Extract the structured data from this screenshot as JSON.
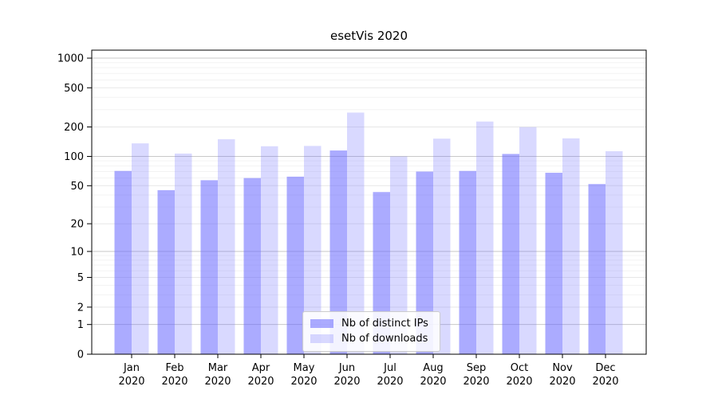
{
  "title": "esetVis 2020",
  "chart_data": {
    "type": "bar",
    "title": "esetVis 2020",
    "categories": [
      "Jan",
      "Feb",
      "Mar",
      "Apr",
      "May",
      "Jun",
      "Jul",
      "Aug",
      "Sep",
      "Oct",
      "Nov",
      "Dec"
    ],
    "category_year": "2020",
    "series": [
      {
        "name": "Nb of distinct IPs",
        "color": "rgba(102,102,255,0.55)",
        "values": [
          71,
          45,
          57,
          60,
          62,
          115,
          43,
          70,
          71,
          106,
          68,
          52
        ]
      },
      {
        "name": "Nb of downloads",
        "color": "rgba(102,102,255,0.25)",
        "values": [
          136,
          107,
          150,
          127,
          128,
          280,
          100,
          152,
          227,
          199,
          153,
          113
        ]
      }
    ],
    "y_scale": "symlog",
    "y_ticks": [
      0,
      1,
      2,
      5,
      10,
      20,
      50,
      100,
      200,
      500,
      1000
    ],
    "y_max": 1205,
    "xlabel": "",
    "ylabel": "",
    "grid": true,
    "legend_position": "lower center"
  },
  "colors": {
    "spine": "#000000",
    "tick_text": "#000000",
    "grid_major": "#c8c8c8",
    "grid_minor": "#e7e7e7",
    "grid_faint": "#f3f3f3",
    "legend_border": "#cccccc"
  }
}
